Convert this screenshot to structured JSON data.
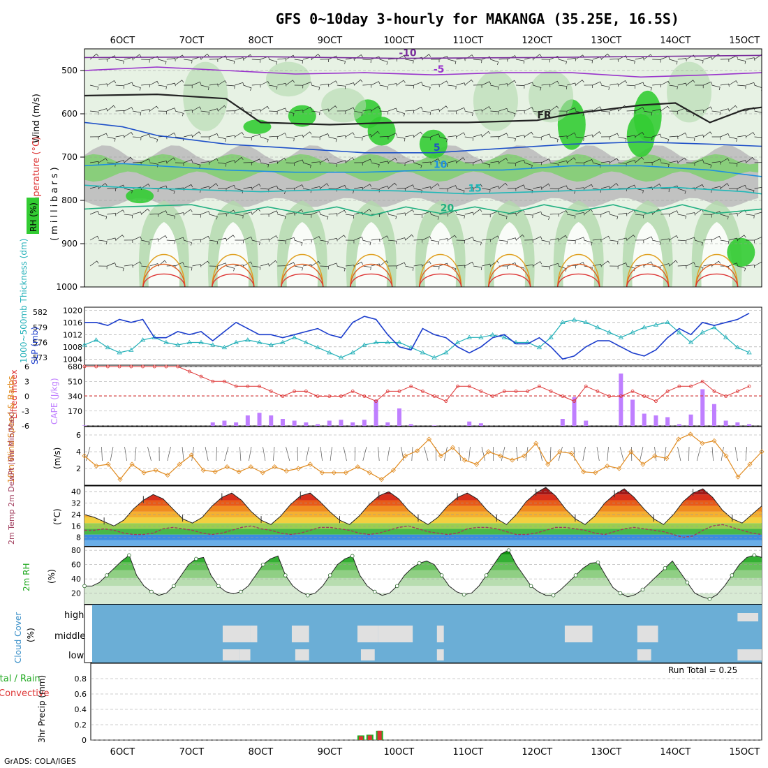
{
  "title": "GFS 0~10day 3-hourly for MAKANGA (35.25E, 16.5S)",
  "credit": "GrADS: COLA/IGES",
  "chart_data": {
    "type": "meteogram",
    "x_tick_labels": [
      "6OCT",
      "7OCT",
      "8OCT",
      "9OCT",
      "10OCT",
      "11OCT",
      "12OCT",
      "13OCT",
      "14OCT",
      "15OCT"
    ],
    "x_range_days": [
      5.45,
      15.25
    ],
    "panels": {
      "profile": {
        "label_wind": "Wind (m/s)",
        "label_temperature": "Temperature (°C)",
        "label_rh": "RH (%)",
        "ylabel": "(millibars)",
        "ylim": [
          450,
          1000
        ],
        "yticks": [
          "500",
          "600",
          "700",
          "800",
          "900",
          "1000"
        ],
        "colors": {
          "rh_light": "#e2f0df",
          "rh_mid": "#b3d8ad",
          "rh_green": "#7fd06e",
          "rh_bright": "#33cc33",
          "rh_gray": "#bdbdbd"
        },
        "isotherms": [
          {
            "label": "-10",
            "color": "#7a2d9c",
            "points": [
              [
                5.45,
                470
              ],
              [
                8,
                468
              ],
              [
                10,
                472
              ],
              [
                12,
                470
              ],
              [
                15.25,
                465
              ]
            ]
          },
          {
            "label": "-5",
            "color": "#9933cc",
            "points": [
              [
                5.45,
                500
              ],
              [
                6.5,
                492
              ],
              [
                7.5,
                500
              ],
              [
                8.5,
                508
              ],
              [
                9.5,
                505
              ],
              [
                10.5,
                510
              ],
              [
                11.5,
                505
              ],
              [
                12.5,
                505
              ],
              [
                13.5,
                515
              ],
              [
                14.5,
                510
              ],
              [
                15.25,
                505
              ]
            ]
          },
          {
            "label": "FR",
            "color": "#222222",
            "points": [
              [
                5.45,
                558
              ],
              [
                6.5,
                555
              ],
              [
                7.5,
                565
              ],
              [
                8,
                620
              ],
              [
                9,
                625
              ],
              [
                10,
                620
              ],
              [
                11,
                620
              ],
              [
                12,
                615
              ],
              [
                12.5,
                600
              ],
              [
                13,
                590
              ],
              [
                13.5,
                580
              ],
              [
                14,
                575
              ],
              [
                14.5,
                620
              ],
              [
                15,
                590
              ],
              [
                15.25,
                585
              ]
            ]
          },
          {
            "label": "5",
            "color": "#1e50c8",
            "points": [
              [
                5.45,
                620
              ],
              [
                6,
                630
              ],
              [
                6.5,
                650
              ],
              [
                7.5,
                670
              ],
              [
                8.5,
                680
              ],
              [
                9.5,
                690
              ],
              [
                10.5,
                690
              ],
              [
                11.5,
                680
              ],
              [
                12.5,
                670
              ],
              [
                13.5,
                665
              ],
              [
                14.5,
                670
              ],
              [
                15.25,
                675
              ]
            ]
          },
          {
            "label": "10",
            "color": "#1e90e0",
            "points": [
              [
                5.45,
                720
              ],
              [
                6,
                715
              ],
              [
                6.5,
                720
              ],
              [
                7.5,
                730
              ],
              [
                8.5,
                735
              ],
              [
                9.5,
                735
              ],
              [
                10.5,
                730
              ],
              [
                11.5,
                730
              ],
              [
                12.5,
                720
              ],
              [
                13.5,
                720
              ],
              [
                14.5,
                730
              ],
              [
                15.25,
                745
              ]
            ]
          },
          {
            "label": "15",
            "color": "#20b8b8",
            "points": [
              [
                5.45,
                765
              ],
              [
                6,
                770
              ],
              [
                7,
                775
              ],
              [
                8,
                780
              ],
              [
                9,
                775
              ],
              [
                10,
                778
              ],
              [
                11,
                785
              ],
              [
                12,
                780
              ],
              [
                13,
                775
              ],
              [
                14,
                770
              ],
              [
                15,
                780
              ],
              [
                15.25,
                785
              ]
            ]
          },
          {
            "label": "20",
            "color": "#20b080",
            "points": [
              [
                5.45,
                820
              ],
              [
                6,
                815
              ],
              [
                7,
                810
              ],
              [
                7.6,
                830
              ],
              [
                8.1,
                815
              ],
              [
                8.6,
                830
              ],
              [
                9.1,
                815
              ],
              [
                9.6,
                835
              ],
              [
                10.1,
                815
              ],
              [
                10.6,
                830
              ],
              [
                11.1,
                815
              ],
              [
                11.6,
                830
              ],
              [
                12.1,
                810
              ],
              [
                12.6,
                825
              ],
              [
                13.1,
                810
              ],
              [
                13.6,
                830
              ],
              [
                14.1,
                810
              ],
              [
                14.6,
                830
              ],
              [
                15.25,
                820
              ]
            ]
          }
        ],
        "label_points": [
          [
            9.6,
            475
          ],
          [
            9.6,
            510
          ],
          [
            9.6,
            525
          ],
          [
            9.4,
            575
          ],
          [
            12.6,
            600
          ],
          [
            13.6,
            600
          ],
          [
            12.9,
            625
          ]
        ]
      },
      "slp_thickness": {
        "ylabel_thickness": "1000~500mb Thickness (dm)",
        "ylabel_slp": "SLP (mb)",
        "thickness_ticks": [
          "573",
          "576",
          "579",
          "582"
        ],
        "slp_ticks": [
          "1004",
          "1008",
          "1012",
          "1016",
          "1020"
        ],
        "slp_color": "#1a3ccc",
        "thickness_color": "#22b0b8",
        "slp": [
          1016,
          1016,
          1015,
          1017,
          1016,
          1017,
          1011,
          1011,
          1013,
          1012,
          1013,
          1010,
          1013,
          1016,
          1014,
          1012,
          1012,
          1011,
          1012,
          1013,
          1014,
          1012,
          1011,
          1016,
          1018,
          1017,
          1012,
          1008,
          1007,
          1014,
          1012,
          1011,
          1008,
          1006,
          1008,
          1011,
          1012,
          1009,
          1009,
          1011,
          1008,
          1004,
          1005,
          1008,
          1010,
          1010,
          1008,
          1006,
          1005,
          1007,
          1011,
          1014,
          1012,
          1016,
          1015,
          1016,
          1017,
          1019
        ],
        "thickness": [
          575.5,
          576.5,
          575,
          574,
          574.5,
          576.5,
          577,
          576,
          575.5,
          576,
          576,
          575.5,
          575,
          576,
          576.5,
          576,
          575.5,
          576,
          577,
          576,
          575,
          574,
          573,
          574,
          575.5,
          576,
          576,
          576,
          575,
          574,
          573,
          574,
          576,
          577,
          577,
          577.5,
          577,
          576,
          576,
          575,
          577,
          580,
          580.5,
          580,
          579,
          578,
          577,
          578,
          579,
          579.5,
          580,
          578,
          576,
          578,
          579,
          577,
          575,
          574
        ]
      },
      "li_cape": {
        "ylabel_li": "Lifted Index",
        "ylabel_cape": "CAPE (J/kg)",
        "li_ticks": [
          "6",
          "3",
          "0",
          "-3",
          "-6"
        ],
        "cape_ticks": [
          "170",
          "340",
          "510",
          "680"
        ],
        "li_color": "#dd3333",
        "cape_color": "#bf7fff",
        "lifted_index": [
          6,
          6,
          6,
          6,
          6,
          6,
          6,
          6,
          6,
          5,
          4,
          3,
          3,
          2,
          2,
          2,
          1,
          0,
          1,
          1,
          0,
          0,
          0,
          1,
          0,
          -1,
          1,
          1,
          2,
          1,
          0,
          -1,
          2,
          2,
          1,
          0,
          1,
          1,
          1,
          2,
          1,
          0,
          -1,
          2,
          1,
          0,
          0,
          1,
          0,
          -1,
          1,
          2,
          2,
          3,
          1,
          0,
          1,
          2
        ],
        "cape": [
          5,
          0,
          0,
          0,
          0,
          0,
          0,
          0,
          0,
          0,
          0,
          40,
          60,
          40,
          120,
          150,
          120,
          80,
          60,
          40,
          20,
          60,
          70,
          40,
          70,
          300,
          40,
          200,
          20,
          0,
          5,
          0,
          0,
          50,
          30,
          0,
          0,
          0,
          0,
          0,
          0,
          80,
          330,
          60,
          0,
          0,
          600,
          300,
          140,
          120,
          100,
          20,
          130,
          420,
          250,
          60,
          40,
          20
        ]
      },
      "wind10m": {
        "ylabel": "10m Wind Speed & Barbs",
        "yunit": "(m/s)",
        "yticks": [
          "2",
          "4",
          "6"
        ],
        "color": "#e08a1e",
        "speed": [
          3.5,
          2.3,
          2.5,
          0.7,
          2.5,
          1.5,
          1.8,
          1.2,
          2.5,
          3.6,
          1.8,
          1.6,
          2.2,
          1.6,
          2.2,
          1.5,
          2.2,
          1.7,
          2.0,
          2.5,
          1.5,
          1.5,
          1.5,
          2.2,
          1.5,
          0.7,
          1.8,
          3.5,
          4.1,
          5.5,
          3.5,
          4.5,
          3.0,
          2.5,
          4.0,
          3.5,
          3.0,
          3.5,
          5.0,
          2.5,
          4.0,
          3.8,
          1.6,
          1.5,
          2.3,
          2.0,
          4.0,
          2.5,
          3.5,
          3.2,
          5.5,
          6.1,
          5.0,
          5.3,
          3.5,
          1.0,
          2.5,
          4.0
        ]
      },
      "temp2m": {
        "ylabel": "2m Temp 2m DewPt (6hr Min/Max)",
        "yunit": "(°C)",
        "yticks": [
          "8",
          "16",
          "24",
          "32",
          "40"
        ],
        "dew_color": "#a03c5c",
        "temperature": [
          24,
          22,
          19,
          16,
          20,
          28,
          34,
          38,
          35,
          28,
          21,
          18,
          22,
          30,
          36,
          39,
          34,
          26,
          20,
          17,
          23,
          31,
          37,
          39,
          33,
          26,
          20,
          17,
          23,
          31,
          37,
          40,
          35,
          27,
          21,
          17,
          22,
          30,
          36,
          39,
          35,
          27,
          21,
          17,
          24,
          33,
          39,
          43,
          37,
          28,
          21,
          17,
          23,
          32,
          38,
          42,
          36,
          28,
          21,
          17,
          24,
          33,
          39,
          42,
          36,
          27,
          21,
          18,
          24,
          30
        ],
        "dewpoint": [
          13,
          13,
          14,
          13,
          11,
          10,
          10,
          11,
          14,
          15,
          14,
          13,
          11,
          10,
          11,
          13,
          15,
          16,
          14,
          13,
          11,
          10,
          11,
          13,
          15,
          15,
          14,
          13,
          11,
          10,
          11,
          13,
          15,
          16,
          14,
          12,
          11,
          10,
          11,
          14,
          15,
          15,
          14,
          12,
          10,
          10,
          11,
          13,
          15,
          15,
          14,
          13,
          11,
          10,
          12,
          14,
          15,
          14,
          13,
          12,
          10,
          8,
          9,
          13,
          16,
          17,
          15,
          13,
          11,
          10
        ]
      },
      "rh2m": {
        "ylabel": "2m RH",
        "yunit": "(%)",
        "yticks": [
          "20",
          "40",
          "60",
          "80"
        ],
        "color": "#22aa22",
        "values": [
          30,
          30,
          35,
          45,
          55,
          65,
          73,
          45,
          30,
          22,
          17,
          20,
          30,
          45,
          60,
          68,
          70,
          45,
          30,
          22,
          19,
          22,
          30,
          45,
          60,
          68,
          72,
          45,
          30,
          22,
          17,
          20,
          30,
          45,
          60,
          68,
          72,
          45,
          30,
          22,
          17,
          20,
          30,
          45,
          55,
          62,
          65,
          60,
          45,
          30,
          22,
          18,
          20,
          30,
          45,
          60,
          75,
          80,
          60,
          45,
          30,
          22,
          17,
          17,
          25,
          35,
          45,
          55,
          62,
          63,
          45,
          28,
          20,
          15,
          18,
          25,
          35,
          45,
          55,
          65,
          50,
          35,
          20,
          15,
          12,
          18,
          30,
          45,
          60,
          70,
          73,
          70
        ]
      },
      "cloud": {
        "ylabel": "Cloud Cover",
        "yunit": "(%)",
        "levels": [
          "high",
          "middle",
          "low"
        ],
        "color_bg": "#6baed6",
        "color_cloud": "#e0e0e0"
      },
      "precip": {
        "ylabel": "3hr Precip (mm)",
        "ylabel_total": "Total / Rain",
        "ylabel_conv": "Convective",
        "yticks": [
          "0",
          "0.2",
          "0.4",
          "0.6",
          "0.8"
        ],
        "run_total": "Run Total = 0.25",
        "total_color": "#22aa22",
        "conv_color": "#dd3333",
        "bars": [
          {
            "day": 9.45,
            "total": 0.06,
            "conv": 0.05
          },
          {
            "day": 9.58,
            "total": 0.07,
            "conv": 0.06
          },
          {
            "day": 9.72,
            "total": 0.12,
            "conv": 0.12
          }
        ]
      }
    }
  }
}
